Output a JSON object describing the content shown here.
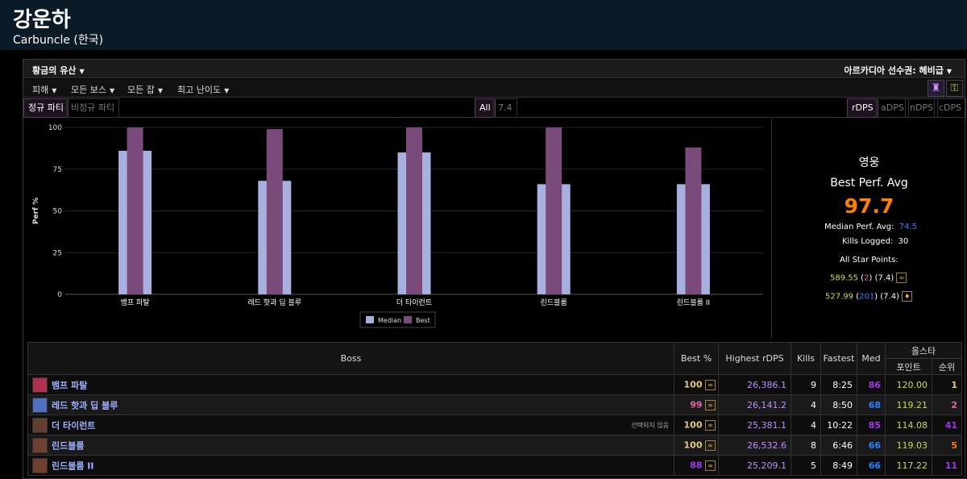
{
  "header": {
    "name": "강운하",
    "server": "Carbuncle (한국)"
  },
  "zone": {
    "left": "황금의 유산",
    "right": "아르카디아 선수권: 헤비급"
  },
  "filters": [
    "피해",
    "모든 보스",
    "모든 잡",
    "최고 난이도"
  ],
  "tabs_left": [
    "정규 파티",
    "비정규 파티"
  ],
  "tabs_mid": [
    "All",
    "7.4"
  ],
  "tabs_right": [
    "rDPS",
    "aDPS",
    "nDPS",
    "cDPS"
  ],
  "colors": {
    "median": "#a8b0e0",
    "best": "#7a4a7a",
    "epic": "#a335ee",
    "legendary": "#ff8000",
    "rare": "#2a80ff",
    "gold": "#e5cc80"
  },
  "chart_data": {
    "type": "bar",
    "ylabel": "Perf %",
    "ylim": [
      0,
      100
    ],
    "yticks": [
      0,
      25,
      50,
      75,
      100
    ],
    "categories": [
      "뱀프 파탈",
      "레드 핫과 딥 블루",
      "더 타이런트",
      "린드블룸",
      "린드블룸 II"
    ],
    "series": [
      {
        "name": "Median",
        "values": [
          86,
          68,
          85,
          66,
          66
        ]
      },
      {
        "name": "Best",
        "values": [
          100,
          99,
          100,
          100,
          88
        ]
      }
    ]
  },
  "stats": {
    "spec": "영웅",
    "best_label": "Best Perf. Avg",
    "best_value": "97.7",
    "median_label": "Median Perf. Avg:",
    "median_value": "74.5",
    "kills_label": "Kills Logged:",
    "kills_value": "30",
    "star_label": "All Star Points:",
    "star1": {
      "points": "589.55",
      "rank": "2",
      "patch": "(7.4)"
    },
    "star2": {
      "points": "527.99",
      "rank": "201",
      "patch": "(7.4)"
    }
  },
  "table": {
    "headers": {
      "boss": "Boss",
      "best": "Best %",
      "highest": "Highest rDPS",
      "kills": "Kills",
      "fastest": "Fastest",
      "med": "Med",
      "allstar": "올스타",
      "points": "포인트",
      "rank": "순위"
    },
    "rows": [
      {
        "boss": "뱀프 파탈",
        "note": "",
        "best": "100",
        "highest": "26,386.1",
        "kills": "9",
        "fastest": "8:25",
        "med": "86",
        "points": "120.00",
        "rank": "1",
        "best_color": "#e5cc80",
        "med_color": "#a335ee",
        "rank_color": "#e5cc80",
        "icon_color": "#b03050"
      },
      {
        "boss": "레드 핫과 딥 블루",
        "note": "",
        "best": "99",
        "highest": "26,141.2",
        "kills": "4",
        "fastest": "8:50",
        "med": "68",
        "points": "119.21",
        "rank": "2",
        "best_color": "#e268a8",
        "med_color": "#2a80ff",
        "rank_color": "#e268a8",
        "icon_color": "#5070c0"
      },
      {
        "boss": "더 타이런트",
        "note": "선택되지 않음",
        "best": "100",
        "highest": "25,381.1",
        "kills": "4",
        "fastest": "10:22",
        "med": "85",
        "points": "114.08",
        "rank": "41",
        "best_color": "#e5cc80",
        "med_color": "#a335ee",
        "rank_color": "#a335ee",
        "icon_color": "#604030"
      },
      {
        "boss": "린드블룸",
        "note": "",
        "best": "100",
        "highest": "26,532.6",
        "kills": "8",
        "fastest": "6:46",
        "med": "66",
        "points": "119.03",
        "rank": "5",
        "best_color": "#e5cc80",
        "med_color": "#2a80ff",
        "rank_color": "#ff8000",
        "icon_color": "#704030"
      },
      {
        "boss": "린드블룸 II",
        "note": "",
        "best": "88",
        "highest": "25,209.1",
        "kills": "5",
        "fastest": "8:49",
        "med": "66",
        "points": "117.22",
        "rank": "11",
        "best_color": "#a335ee",
        "med_color": "#2a80ff",
        "rank_color": "#a335ee",
        "icon_color": "#704030"
      }
    ]
  }
}
